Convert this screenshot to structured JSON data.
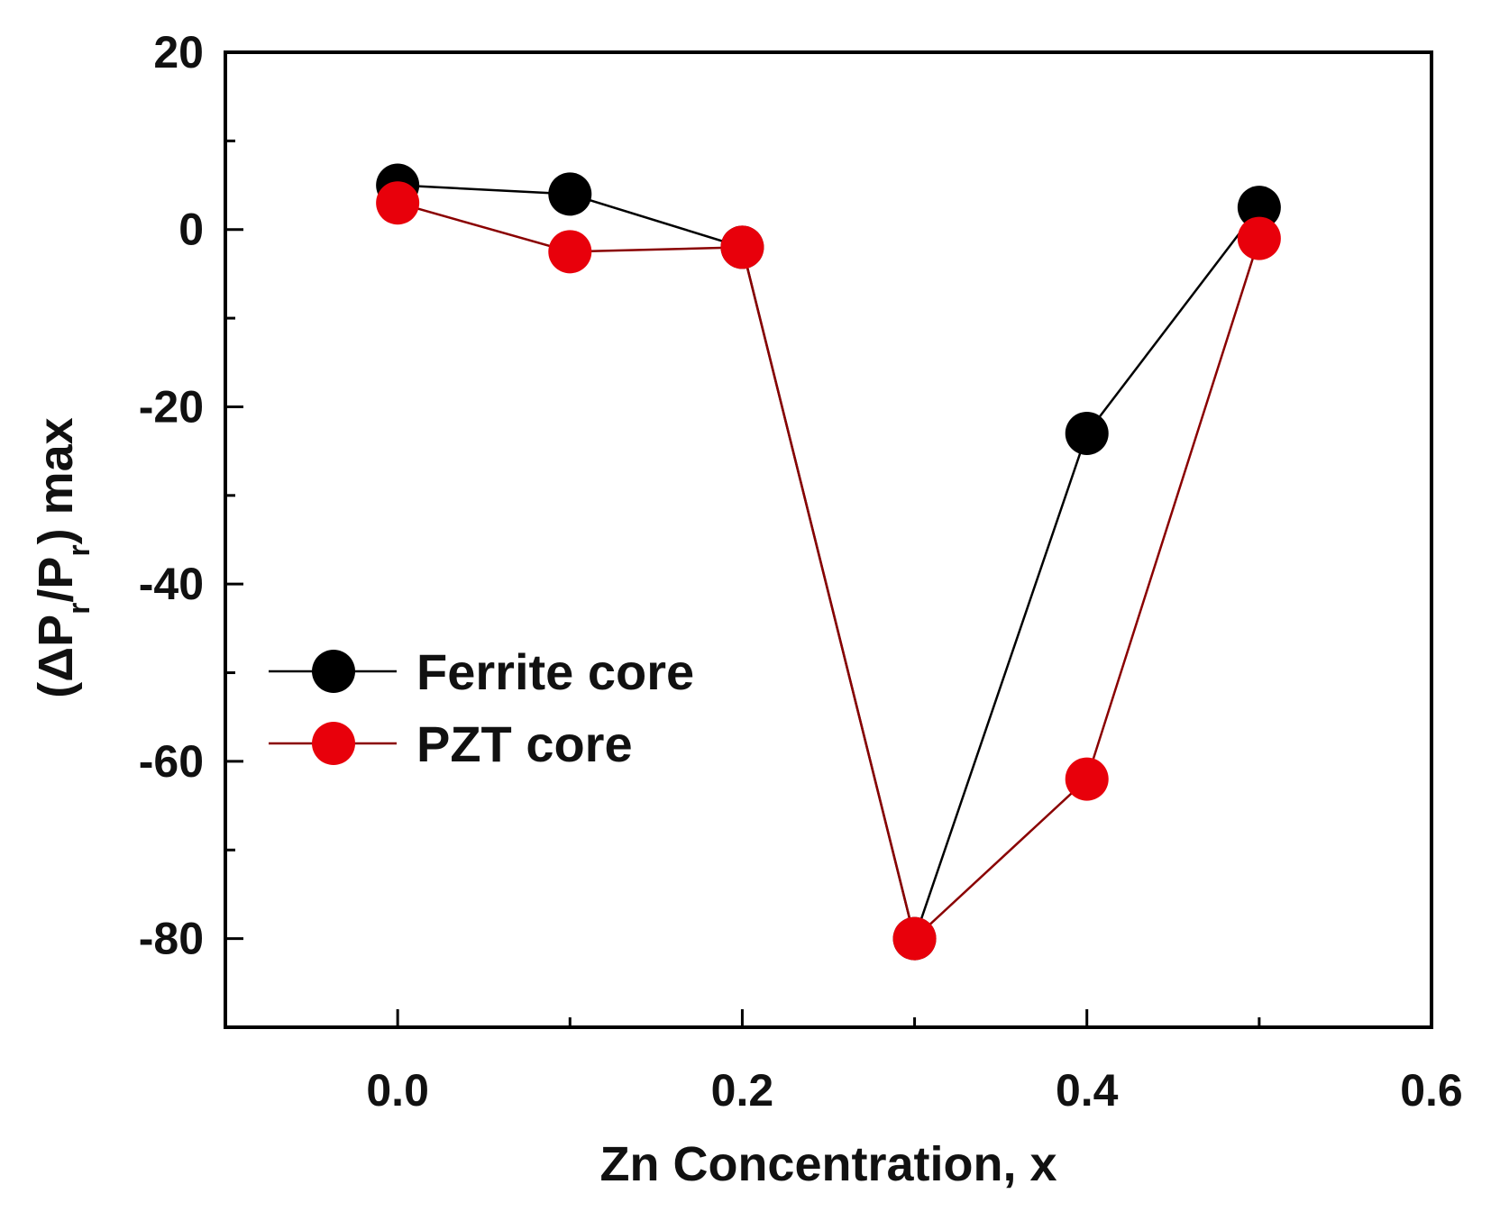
{
  "chart_data": {
    "type": "line",
    "xlabel": "Zn Concentration, x",
    "ylabel": {
      "prefix": "(ΔP",
      "sub1": "r",
      "mid": "/P",
      "sub2": "r",
      "suffix": ") max"
    },
    "xlim": [
      -0.1,
      0.6
    ],
    "ylim": [
      -90,
      20
    ],
    "x_ticks": [
      "0.0",
      "0.2",
      "0.4",
      "0.6"
    ],
    "x_tick_values": [
      0.0,
      0.2,
      0.4,
      0.6
    ],
    "x_minor_ticks": [
      -0.1,
      0.1,
      0.3,
      0.5
    ],
    "y_ticks": [
      "20",
      "0",
      "-20",
      "-40",
      "-60",
      "-80"
    ],
    "y_tick_values": [
      20,
      0,
      -20,
      -40,
      -60,
      -80
    ],
    "y_minor_ticks": [
      10,
      -10,
      -30,
      -50,
      -70,
      -90
    ],
    "grid": false,
    "legend_position": "left-center",
    "series": [
      {
        "name": "Ferrite core",
        "color": "#000000",
        "x": [
          0.0,
          0.1,
          0.2,
          0.3,
          0.4,
          0.5
        ],
        "y": [
          5,
          4,
          -2,
          -80,
          -23,
          2.5
        ]
      },
      {
        "name": "PZT core",
        "color": "#e8000b",
        "x": [
          0.0,
          0.1,
          0.2,
          0.3,
          0.4,
          0.5
        ],
        "y": [
          3,
          -2.5,
          -2,
          -80,
          -62,
          -1
        ]
      }
    ]
  }
}
